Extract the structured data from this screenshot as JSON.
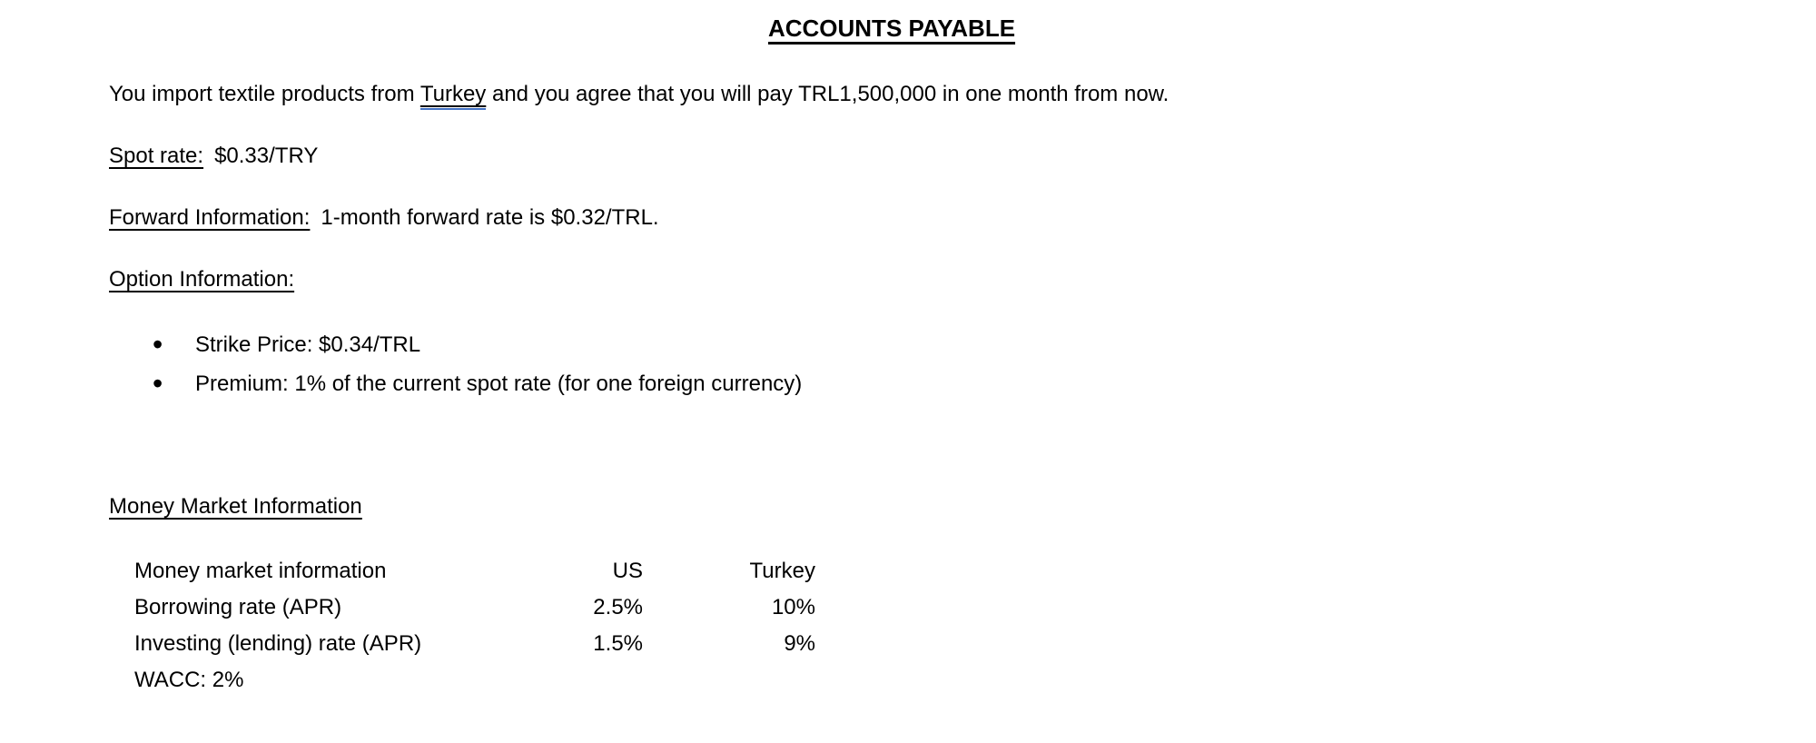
{
  "page": {
    "title": "ACCOUNTS PAYABLE",
    "intro": {
      "before": "You import textile products from ",
      "flagged_word": "Turkey",
      "after": " and you agree that you will pay TRL1,500,000 in one month from now."
    },
    "spot": {
      "label": "Spot rate:",
      "value": "$0.33/TRY"
    },
    "forward": {
      "label": "Forward Information:",
      "value": "1-month forward rate is $0.32/TRL."
    },
    "option": {
      "label": "Option Information:",
      "bullets": [
        "Strike Price: $0.34/TRL",
        "Premium: 1% of the current spot rate (for one foreign currency)"
      ]
    },
    "money_market": {
      "heading": "Money Market Information",
      "table": {
        "headers": [
          "Money market information",
          "US",
          "Turkey"
        ],
        "rows": [
          {
            "label": "Borrowing rate (APR)",
            "us": "2.5%",
            "turkey": "10%"
          },
          {
            "label": "Investing (lending) rate (APR)",
            "us": "1.5%",
            "turkey": "9%"
          },
          {
            "label": "WACC: 2%",
            "us": "",
            "turkey": ""
          }
        ]
      }
    },
    "colors": {
      "text": "#000000",
      "background": "#ffffff",
      "grammar_underline": "#4472c4"
    }
  }
}
